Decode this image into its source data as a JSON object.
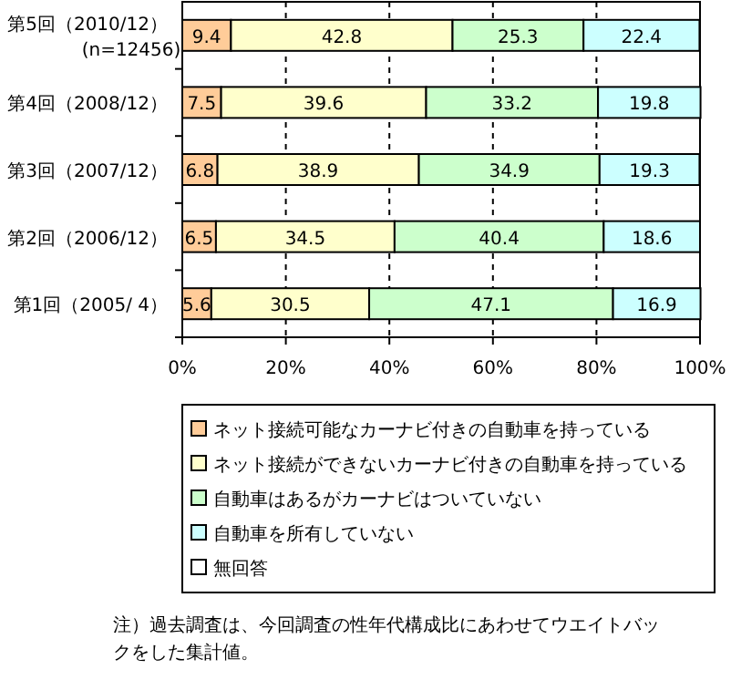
{
  "chart_data": {
    "type": "bar",
    "orientation": "horizontal",
    "stacked": true,
    "data_labels": true,
    "grid": "x",
    "legend": "bottom",
    "categories": [
      "第5回（2010/12）\n(n=12456)",
      "第4回（2008/12）",
      "第3回（2007/12）",
      "第2回（2006/12）",
      "第1回（2005/ 4）"
    ],
    "xlim": [
      0,
      100
    ],
    "xticks": [
      {
        "value": 0,
        "label": "0%"
      },
      {
        "value": 20,
        "label": "20%"
      },
      {
        "value": 40,
        "label": "40%"
      },
      {
        "value": 60,
        "label": "60%"
      },
      {
        "value": 80,
        "label": "80%"
      },
      {
        "value": 100,
        "label": "100%"
      }
    ],
    "series": [
      {
        "name": "ネット接続可能なカーナビ付きの自動車を持っている",
        "color": "#ffcc99",
        "values": [
          9.4,
          7.5,
          6.8,
          6.5,
          5.6
        ]
      },
      {
        "name": "ネット接続ができないカーナビ付きの自動車を持っている",
        "color": "#ffffcc",
        "values": [
          42.8,
          39.6,
          38.9,
          34.5,
          30.5
        ]
      },
      {
        "name": "自動車はあるがカーナビはついていない",
        "color": "#ccffcc",
        "values": [
          25.3,
          33.2,
          34.9,
          40.4,
          47.1
        ]
      },
      {
        "name": "自動車を所有していない",
        "color": "#ccffff",
        "values": [
          22.4,
          19.8,
          19.3,
          18.6,
          16.9
        ]
      },
      {
        "name": "無回答",
        "color": "#ffffff",
        "values": [
          null,
          null,
          null,
          null,
          null
        ]
      }
    ],
    "annotations": [
      "注）過去調査は、今回調査の性年代構成比にあわせてウエイトバックをした集計値。"
    ]
  }
}
